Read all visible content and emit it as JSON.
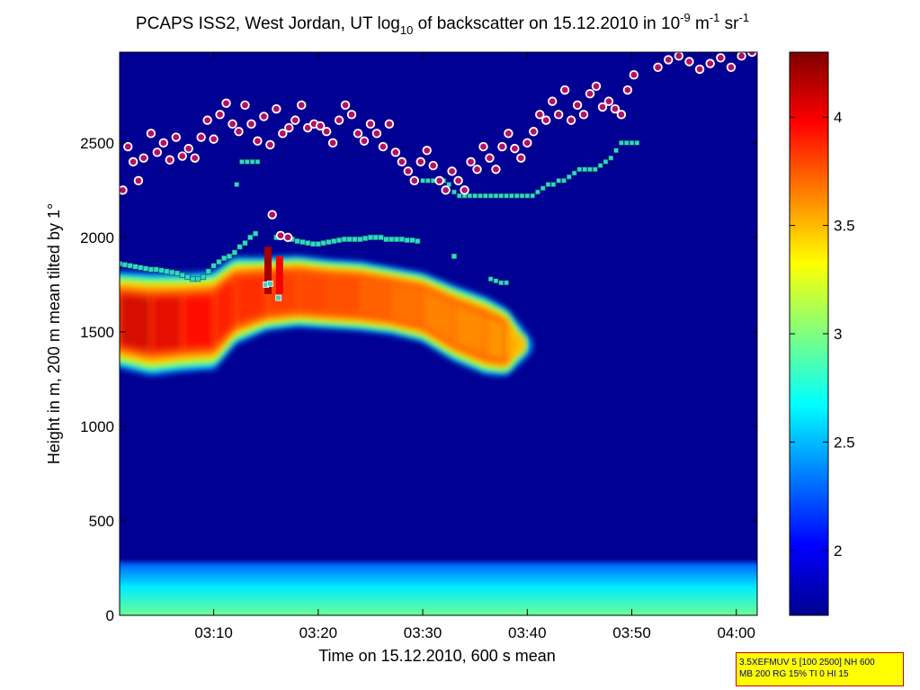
{
  "chart_data": {
    "type": "heatmap",
    "title": {
      "part1": "PCAPS ISS2, West Jordan, UT log",
      "sub": "10",
      "part2": " of backscatter on 15.12.2010 in 10",
      "sup1": "-9",
      "part3": " m",
      "sup2": "-1",
      "part4": " sr",
      "sup3": "-1"
    },
    "xlabel": "Time on 15.12.2010, 600 s mean",
    "ylabel": "Height in m, 200 m mean tilted by 1°",
    "xlim_minutes": [
      181,
      242
    ],
    "ylim": [
      0,
      2980
    ],
    "x_ticks": [
      {
        "minutes": 190,
        "label": "03:10"
      },
      {
        "minutes": 200,
        "label": "03:20"
      },
      {
        "minutes": 210,
        "label": "03:30"
      },
      {
        "minutes": 220,
        "label": "03:40"
      },
      {
        "minutes": 230,
        "label": "03:50"
      },
      {
        "minutes": 240,
        "label": "04:00"
      }
    ],
    "y_ticks": [
      0,
      500,
      1000,
      1500,
      2000,
      2500
    ],
    "colorbar": {
      "range": [
        1.7,
        4.3
      ],
      "ticks": [
        2,
        2.5,
        3,
        3.5,
        4
      ],
      "tick_labels": [
        "2",
        "2.5",
        "3",
        "3.5",
        "4"
      ],
      "colormap": "jet"
    },
    "background_value": 1.75,
    "surface_layer": {
      "top_m": 270,
      "value_bottom": 2.95,
      "value_top": 2.3
    },
    "aerosol_layer": [
      {
        "t": 181,
        "base": 1340,
        "top": 1790,
        "v": 4.05
      },
      {
        "t": 184,
        "base": 1300,
        "top": 1780,
        "v": 4.05
      },
      {
        "t": 187,
        "base": 1320,
        "top": 1780,
        "v": 3.95
      },
      {
        "t": 190,
        "base": 1330,
        "top": 1790,
        "v": 3.9
      },
      {
        "t": 192,
        "base": 1460,
        "top": 1870,
        "v": 3.85
      },
      {
        "t": 195,
        "base": 1530,
        "top": 1870,
        "v": 3.8
      },
      {
        "t": 198,
        "base": 1550,
        "top": 1880,
        "v": 3.75
      },
      {
        "t": 201,
        "base": 1540,
        "top": 1860,
        "v": 3.75
      },
      {
        "t": 204,
        "base": 1530,
        "top": 1850,
        "v": 3.7
      },
      {
        "t": 207,
        "base": 1510,
        "top": 1820,
        "v": 3.65
      },
      {
        "t": 210,
        "base": 1470,
        "top": 1790,
        "v": 3.6
      },
      {
        "t": 213,
        "base": 1370,
        "top": 1720,
        "v": 3.55
      },
      {
        "t": 216,
        "base": 1300,
        "top": 1660,
        "v": 3.55
      },
      {
        "t": 218,
        "base": 1290,
        "top": 1600,
        "v": 3.5
      },
      {
        "t": 220,
        "base": 1380,
        "top": 1480,
        "v": 3.4
      }
    ],
    "plumes": [
      {
        "t": 195.2,
        "base": 1700,
        "top": 1950,
        "v": 4.2
      },
      {
        "t": 196.3,
        "base": 1700,
        "top": 1900,
        "v": 4.0
      }
    ],
    "cloud_base_height": {
      "marker": "white-edged purple circle",
      "t": [
        181.3,
        181.8,
        182.3,
        182.8,
        183.3,
        184,
        184.6,
        185.2,
        185.8,
        186.4,
        187,
        187.6,
        188.2,
        188.8,
        189.4,
        190,
        190.6,
        191.2,
        191.8,
        192.4,
        193,
        193.6,
        194.2,
        194.8,
        195.4,
        196,
        196.6,
        197.2,
        197.8,
        198.4,
        199,
        199.6,
        200.2,
        200.8,
        201.4,
        202,
        202.6,
        203.2,
        203.8,
        204.4,
        205,
        205.6,
        206.2,
        206.8,
        207.4,
        208,
        208.6,
        209.2,
        209.8,
        210.4,
        211,
        211.6,
        212.2,
        212.8,
        213.4,
        214,
        214.6,
        215.2,
        215.8,
        216.4,
        217,
        217.6,
        218.2,
        218.8,
        219.4,
        220,
        220.6,
        221.2,
        221.8,
        222.4,
        223,
        223.6,
        224.2,
        224.8,
        225.4,
        226,
        226.6,
        227.2,
        227.8,
        228.4,
        229,
        229.6,
        230.2,
        232.5,
        233.5,
        234.5,
        235.5,
        236.5,
        237.5,
        238.5,
        239.5,
        240.5,
        241.5
      ],
      "h": [
        2250,
        2480,
        2400,
        2300,
        2420,
        2550,
        2450,
        2500,
        2410,
        2530,
        2430,
        2470,
        2420,
        2530,
        2620,
        2520,
        2650,
        2710,
        2600,
        2560,
        2700,
        2600,
        2510,
        2640,
        2490,
        2680,
        2550,
        2580,
        2620,
        2700,
        2580,
        2600,
        2590,
        2560,
        2500,
        2620,
        2700,
        2650,
        2550,
        2510,
        2600,
        2550,
        2480,
        2600,
        2450,
        2400,
        2350,
        2300,
        2400,
        2460,
        2380,
        2300,
        2250,
        2350,
        2300,
        2250,
        2400,
        2360,
        2480,
        2420,
        2360,
        2480,
        2550,
        2470,
        2420,
        2500,
        2560,
        2650,
        2620,
        2720,
        2650,
        2780,
        2620,
        2700,
        2650,
        2760,
        2800,
        2690,
        2720,
        2680,
        2650,
        2780,
        2860,
        2900,
        2940,
        2960,
        2930,
        2890,
        2920,
        2950,
        2900,
        2960,
        2980
      ],
      "spikes": [
        {
          "t": 195.6,
          "h": 2120
        },
        {
          "t": 196.4,
          "h": 2010
        },
        {
          "t": 197.1,
          "h": 2000
        }
      ]
    },
    "layer_height": {
      "marker": "cyan square",
      "t": [
        181,
        181.5,
        182,
        182.5,
        183,
        183.5,
        184,
        184.5,
        185,
        185.5,
        186,
        186.5,
        187,
        187.5,
        188,
        188.5,
        189,
        189.5,
        190,
        190.5,
        191,
        191.5,
        192,
        192.5,
        193,
        193.5,
        194,
        196,
        196.5,
        197,
        197.5,
        198,
        198.5,
        199,
        199.5,
        200,
        200.5,
        201,
        201.5,
        202,
        202.5,
        203,
        203.5,
        204,
        204.5,
        205,
        205.5,
        206,
        206.5,
        207,
        207.5,
        208,
        208.5,
        209,
        209.5,
        213
      ],
      "h": [
        1860,
        1855,
        1850,
        1845,
        1840,
        1835,
        1830,
        1830,
        1825,
        1820,
        1815,
        1810,
        1800,
        1790,
        1780,
        1780,
        1790,
        1820,
        1850,
        1870,
        1890,
        1900,
        1920,
        1950,
        1970,
        2000,
        2020,
        2000,
        2010,
        2000,
        1990,
        1980,
        1975,
        1970,
        1965,
        1965,
        1970,
        1975,
        1980,
        1985,
        1990,
        1990,
        1990,
        1990,
        1995,
        2000,
        2000,
        2000,
        1990,
        1990,
        1990,
        1990,
        1985,
        1985,
        1980,
        1900
      ],
      "spikes": [
        {
          "t": 195,
          "h": 1750
        },
        {
          "t": 195.4,
          "h": 1755
        },
        {
          "t": 196.2,
          "h": 1680
        }
      ]
    },
    "upper_layer": {
      "marker": "cyan square",
      "t": [
        192.2,
        192.7,
        193.2,
        193.7,
        194.2,
        210,
        210.5,
        211,
        211.5,
        212,
        212.5,
        213,
        213.5,
        214,
        214.5,
        215,
        215.5,
        216,
        216.5,
        217,
        217.5,
        218,
        218.5,
        219,
        219.5,
        220,
        220.5,
        221,
        221.5,
        222,
        222.5,
        223,
        223.5,
        224,
        224.5,
        225,
        225.5,
        226,
        226.5,
        227,
        227.5,
        228,
        228.5,
        229,
        229.5,
        230,
        230.5,
        216.5,
        217,
        217.5,
        218
      ],
      "h": [
        2280,
        2400,
        2400,
        2400,
        2400,
        2300,
        2300,
        2300,
        2300,
        2300,
        2280,
        2240,
        2220,
        2220,
        2220,
        2220,
        2220,
        2220,
        2220,
        2220,
        2220,
        2220,
        2220,
        2220,
        2220,
        2220,
        2220,
        2240,
        2260,
        2280,
        2280,
        2300,
        2300,
        2320,
        2340,
        2360,
        2360,
        2360,
        2360,
        2380,
        2400,
        2420,
        2460,
        2500,
        2500,
        2500,
        2500,
        1780,
        1770,
        1760,
        1760
      ]
    }
  },
  "info_box": {
    "line1": "3.5XEFMUV 5 [100 2500] NH 600",
    "line2": "MB 200 RG 15% TI 0 HI 15"
  }
}
